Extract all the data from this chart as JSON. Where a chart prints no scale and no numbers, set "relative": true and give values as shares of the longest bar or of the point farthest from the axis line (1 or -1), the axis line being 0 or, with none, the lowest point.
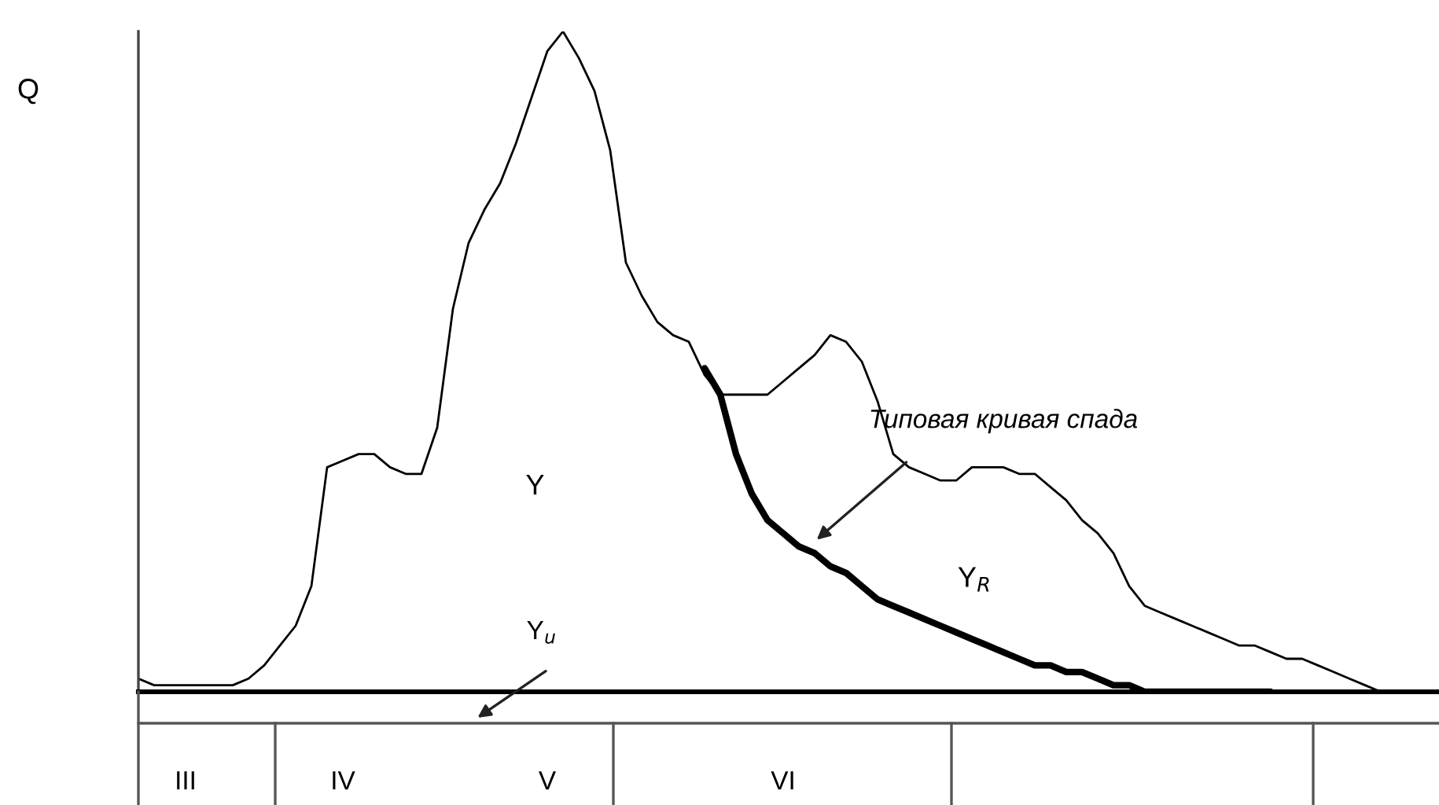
{
  "chart_data": {
    "type": "line",
    "relative": true,
    "ylabel": "Q",
    "legend": false,
    "grid": false,
    "tick_labels": "x",
    "line_style": "solid",
    "marker": "none",
    "categories": [
      null,
      null,
      null,
      "III",
      null,
      null,
      null,
      null,
      null,
      null,
      null,
      null,
      null,
      "IV",
      null,
      null,
      null,
      null,
      null,
      null,
      null,
      null,
      null,
      null,
      null,
      null,
      "V",
      null,
      null,
      null,
      null,
      null,
      null,
      null,
      null,
      null,
      null,
      null,
      null,
      null,
      null,
      "VI",
      null,
      null,
      null,
      null,
      null,
      null,
      null,
      null,
      null,
      null,
      null,
      null,
      null,
      null,
      null,
      null,
      null,
      null,
      null,
      null,
      null,
      null,
      null,
      null,
      null,
      null,
      null,
      null,
      null,
      null,
      null,
      null,
      null,
      null,
      null,
      null,
      null,
      null
    ],
    "series": [
      {
        "color": "#000000",
        "values": [
          0.02,
          0.01,
          0.01,
          0.01,
          0.01,
          0.01,
          0.01,
          0.02,
          0.04,
          0.07,
          0.1,
          0.16,
          0.34,
          0.35,
          0.36,
          0.36,
          0.34,
          0.33,
          0.33,
          0.4,
          0.58,
          0.68,
          0.73,
          0.77,
          0.83,
          0.9,
          0.97,
          1.0,
          0.96,
          0.91,
          0.82,
          0.65,
          0.6,
          0.56,
          0.54,
          0.53,
          0.48,
          0.45,
          0.45,
          0.45,
          0.45,
          0.47,
          0.49,
          0.51,
          0.54,
          0.53,
          0.5,
          0.44,
          0.36,
          0.34,
          0.33,
          0.32,
          0.32,
          0.34,
          0.34,
          0.34,
          0.33,
          0.33,
          0.31,
          0.29,
          0.26,
          0.24,
          0.21,
          0.16,
          0.13,
          0.12,
          0.11,
          0.1,
          0.09,
          0.08,
          0.07,
          0.07,
          0.06,
          0.05,
          0.05,
          0.04,
          0.03,
          0.02,
          0.01,
          0
        ]
      },
      {
        "color": "#000000",
        "values": [
          null,
          null,
          null,
          null,
          null,
          null,
          null,
          null,
          null,
          null,
          null,
          null,
          null,
          null,
          null,
          null,
          null,
          null,
          null,
          null,
          null,
          null,
          null,
          null,
          null,
          null,
          null,
          null,
          null,
          null,
          null,
          null,
          null,
          null,
          null,
          null,
          0.49,
          0.45,
          0.36,
          0.3,
          0.26,
          0.24,
          0.22,
          0.21,
          0.19,
          0.18,
          0.16,
          0.14,
          0.13,
          0.12,
          0.11,
          0.1,
          0.09,
          0.08,
          0.07,
          0.06,
          0.05,
          0.04,
          0.04,
          0.03,
          0.03,
          0.02,
          0.01,
          0.01,
          0,
          0,
          0,
          0,
          0,
          0,
          0,
          0,
          0,
          null,
          null,
          null,
          null,
          null,
          null,
          null
        ]
      }
    ],
    "annotations": [
      "Y",
      "Y$_{u}$",
      "Y$_{R}$",
      "Типовая кривая спада"
    ]
  }
}
